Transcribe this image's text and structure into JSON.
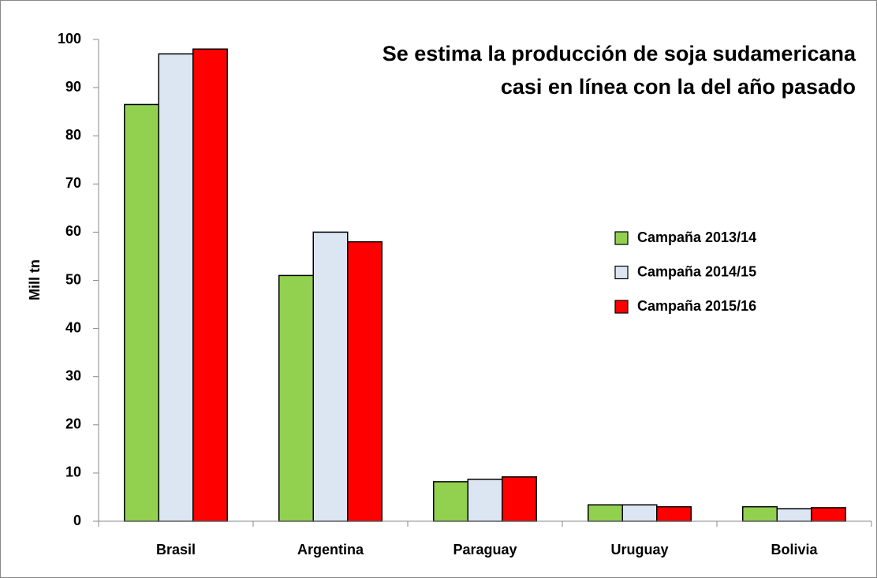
{
  "chart_data": {
    "type": "bar",
    "title": [
      "Se estima la producción de soja sudamericana",
      "casi en línea con la del año pasado"
    ],
    "y_label": "Mill tn",
    "categories": [
      "Brasil",
      "Argentina",
      "Paraguay",
      "Uruguay",
      "Bolivia"
    ],
    "series": [
      {
        "name": "Campaña 2013/14",
        "color": "#92d050",
        "values": [
          86.5,
          51,
          8.2,
          3.4,
          3.0
        ]
      },
      {
        "name": "Campaña 2014/15",
        "color": "#dce6f2",
        "values": [
          97,
          60,
          8.7,
          3.4,
          2.6
        ]
      },
      {
        "name": "Campaña 2015/16",
        "color": "#ff0000",
        "values": [
          98,
          58,
          9.2,
          3.0,
          2.8
        ]
      }
    ],
    "ylim": [
      0,
      100
    ],
    "yticks": [
      0,
      10,
      20,
      30,
      40,
      50,
      60,
      70,
      80,
      90,
      100
    ],
    "grid": false,
    "legend": "right"
  }
}
